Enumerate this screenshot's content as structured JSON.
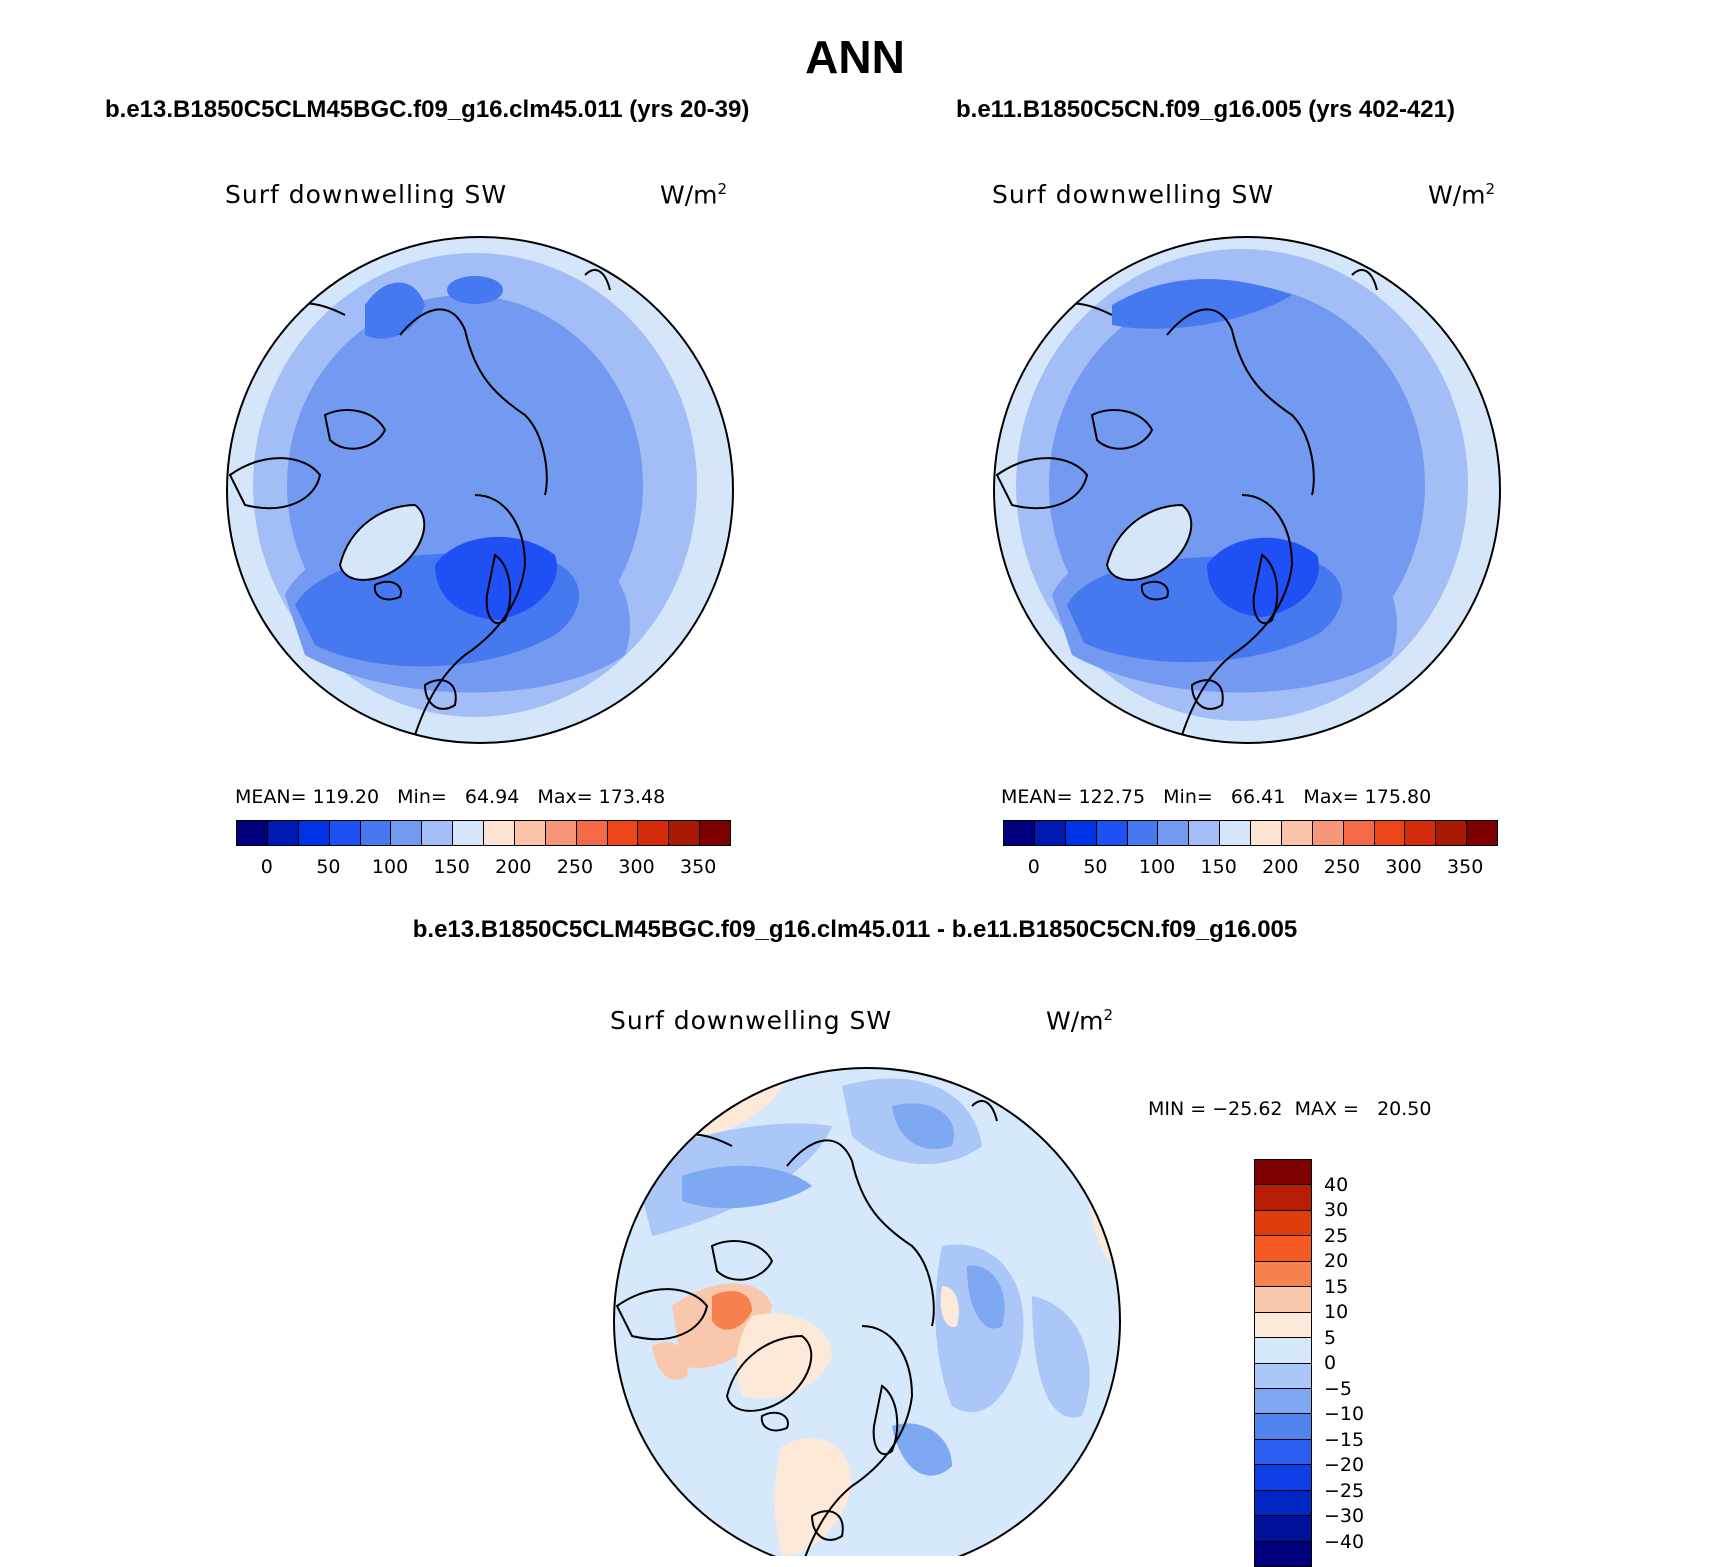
{
  "main_title": "ANN",
  "panels": [
    {
      "case_title": "b.e13.B1850C5CLM45BGC.f09_g16.clm45.011 (yrs 20-39)",
      "variable": "Surf downwelling SW",
      "units": "W/m",
      "units_sup": "2",
      "stats": "MEAN= 119.20   Min=   64.94   Max= 173.48"
    },
    {
      "case_title": "b.e11.B1850C5CN.f09_g16.005 (yrs 402-421)",
      "variable": "Surf downwelling SW",
      "units": "W/m",
      "units_sup": "2",
      "stats": "MEAN= 122.75   Min=   66.41   Max= 175.80"
    }
  ],
  "diff_panel": {
    "title": "b.e13.B1850C5CLM45BGC.f09_g16.clm45.011 - b.e11.B1850C5CN.f09_g16.005",
    "variable": "Surf downwelling SW",
    "units": "W/m",
    "units_sup": "2",
    "stats": "MIN = −25.62  MAX =   20.50"
  },
  "abs_colorbar": {
    "colors": [
      "#00007f",
      "#0019b3",
      "#0032e6",
      "#1e50f5",
      "#4678f0",
      "#7399f0",
      "#a3bef6",
      "#d5e6fb",
      "#fde4d2",
      "#fbc4a8",
      "#f8967a",
      "#f46a47",
      "#ec4519",
      "#d32c0c",
      "#a81a06",
      "#7f0000"
    ],
    "ticks": [
      "0",
      "50",
      "100",
      "150",
      "200",
      "250",
      "300",
      "350"
    ]
  },
  "diff_colorbar": {
    "colors": [
      "#7f0000",
      "#b81e05",
      "#e03d0c",
      "#f55a22",
      "#f7814e",
      "#f9c7ab",
      "#fde9d8",
      "#d6e8fb",
      "#abc7f7",
      "#7fa8f3",
      "#5284ee",
      "#2c5ef2",
      "#0f3ee6",
      "#0026c4",
      "#00129a",
      "#00007f"
    ],
    "ticks": [
      "40",
      "30",
      "25",
      "20",
      "15",
      "10",
      "5",
      "0",
      "−5",
      "−10",
      "−15",
      "−20",
      "−25",
      "−30",
      "−40"
    ]
  },
  "map_colors": {
    "abs_outer": "#d5e6fb",
    "abs_ring": "#a3bef6",
    "abs_mid": "#7399f0",
    "abs_dark": "#4678f0",
    "abs_darkest": "#1e50f5",
    "abs_greenland": "#d5e6fb",
    "diff_base": "#d6e8fb",
    "diff_light": "#abc7f7",
    "diff_mid": "#7fa8f3",
    "diff_dark": "#5284ee",
    "diff_pos_light": "#fde9d8",
    "diff_pos_mid": "#f9c7ab",
    "diff_pos_dark": "#f7814e"
  }
}
